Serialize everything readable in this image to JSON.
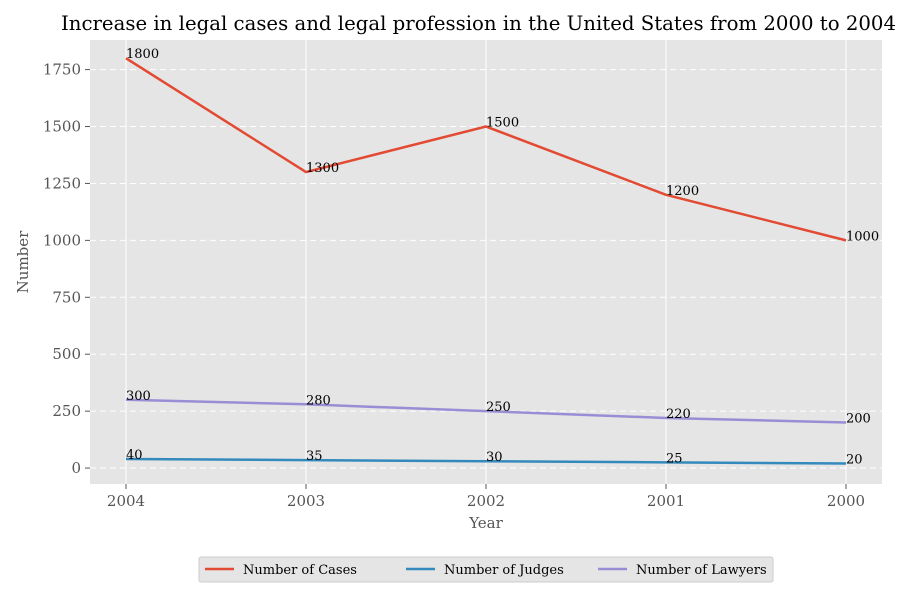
{
  "chart_data": {
    "type": "line",
    "title": "Increase in legal cases and legal profession in the United States from 2000 to 2004",
    "xlabel": "Year",
    "ylabel": "Number",
    "categories": [
      "2004",
      "2003",
      "2002",
      "2001",
      "2000"
    ],
    "series": [
      {
        "name": "Number of Cases",
        "color": "#E24A33",
        "values": [
          1800,
          1300,
          1500,
          1200,
          1000
        ]
      },
      {
        "name": "Number of Judges",
        "color": "#348ABD",
        "values": [
          40,
          35,
          30,
          25,
          20
        ]
      },
      {
        "name": "Number of Lawyers",
        "color": "#988ED5",
        "values": [
          300,
          280,
          250,
          220,
          200
        ]
      }
    ],
    "ylim": [
      -70,
      1880
    ],
    "yticks": [
      0,
      250,
      500,
      750,
      1000,
      1250,
      1500,
      1750
    ],
    "grid": true,
    "legend_position": "bottom-center",
    "data_labels": true,
    "style": "ggplot"
  }
}
